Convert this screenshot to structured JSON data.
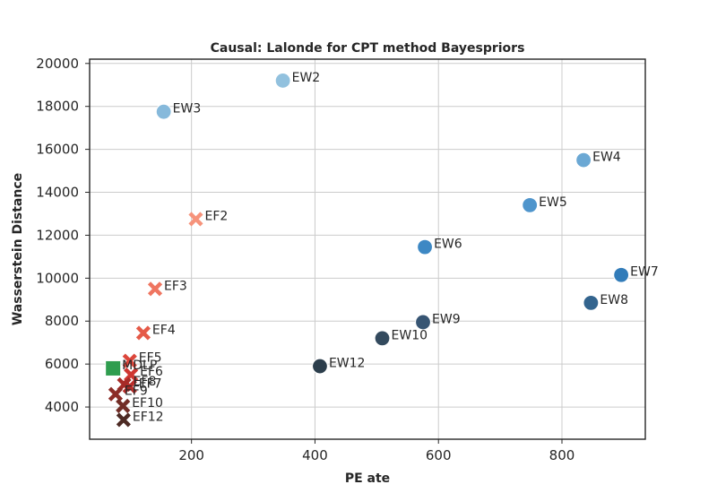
{
  "chart_data": {
    "type": "scatter",
    "title": "Causal: Lalonde for CPT method Bayespriors",
    "xlabel": "PE ate",
    "ylabel": "Wasserstein Distance",
    "xlim": [
      35,
      935
    ],
    "ylim": [
      2500,
      20200
    ],
    "xticks": [
      200,
      400,
      600,
      800
    ],
    "yticks": [
      4000,
      6000,
      8000,
      10000,
      12000,
      14000,
      16000,
      18000,
      20000
    ],
    "grid": true,
    "legend": "none",
    "points": [
      {
        "label": "EW2",
        "x": 348,
        "y": 19200,
        "marker": "circle",
        "color": "#92c1de"
      },
      {
        "label": "EW3",
        "x": 155,
        "y": 17750,
        "marker": "circle",
        "color": "#86b9db"
      },
      {
        "label": "EW4",
        "x": 835,
        "y": 15500,
        "marker": "circle",
        "color": "#6ba8d4"
      },
      {
        "label": "EW5",
        "x": 748,
        "y": 13400,
        "marker": "circle",
        "color": "#4f95cc"
      },
      {
        "label": "EW6",
        "x": 578,
        "y": 11450,
        "marker": "circle",
        "color": "#3d88c4"
      },
      {
        "label": "EW7",
        "x": 896,
        "y": 10150,
        "marker": "circle",
        "color": "#327cb9"
      },
      {
        "label": "EW8",
        "x": 847,
        "y": 8850,
        "marker": "circle",
        "color": "#33648e"
      },
      {
        "label": "EW9",
        "x": 575,
        "y": 7950,
        "marker": "circle",
        "color": "#375573"
      },
      {
        "label": "EW10",
        "x": 509,
        "y": 7200,
        "marker": "circle",
        "color": "#334a5e"
      },
      {
        "label": "EW12",
        "x": 408,
        "y": 5900,
        "marker": "circle",
        "color": "#2c3e4c"
      },
      {
        "label": "EF2",
        "x": 207,
        "y": 12750,
        "marker": "x",
        "color": "#f6937b"
      },
      {
        "label": "EF3",
        "x": 141,
        "y": 9500,
        "marker": "x",
        "color": "#ef7560"
      },
      {
        "label": "EF4",
        "x": 122,
        "y": 7450,
        "marker": "x",
        "color": "#e55a48"
      },
      {
        "label": "EF5",
        "x": 100,
        "y": 6150,
        "marker": "x",
        "color": "#dc463b"
      },
      {
        "label": "EF6",
        "x": 102,
        "y": 5500,
        "marker": "x",
        "color": "#cf3731"
      },
      {
        "label": "EF7",
        "x": 100,
        "y": 4950,
        "marker": "x",
        "color": "#b92e2a"
      },
      {
        "label": "EF8",
        "x": 91,
        "y": 5050,
        "marker": "x",
        "color": "#a62b27"
      },
      {
        "label": "EF9",
        "x": 77,
        "y": 4600,
        "marker": "x",
        "color": "#8c2d27"
      },
      {
        "label": "EF10",
        "x": 89,
        "y": 4050,
        "marker": "x",
        "color": "#722d26"
      },
      {
        "label": "EF12",
        "x": 90,
        "y": 3400,
        "marker": "x",
        "color": "#4d2a24"
      },
      {
        "label": "MDLP",
        "x": 73,
        "y": 5800,
        "marker": "square",
        "color": "#2f9d4f"
      }
    ]
  }
}
